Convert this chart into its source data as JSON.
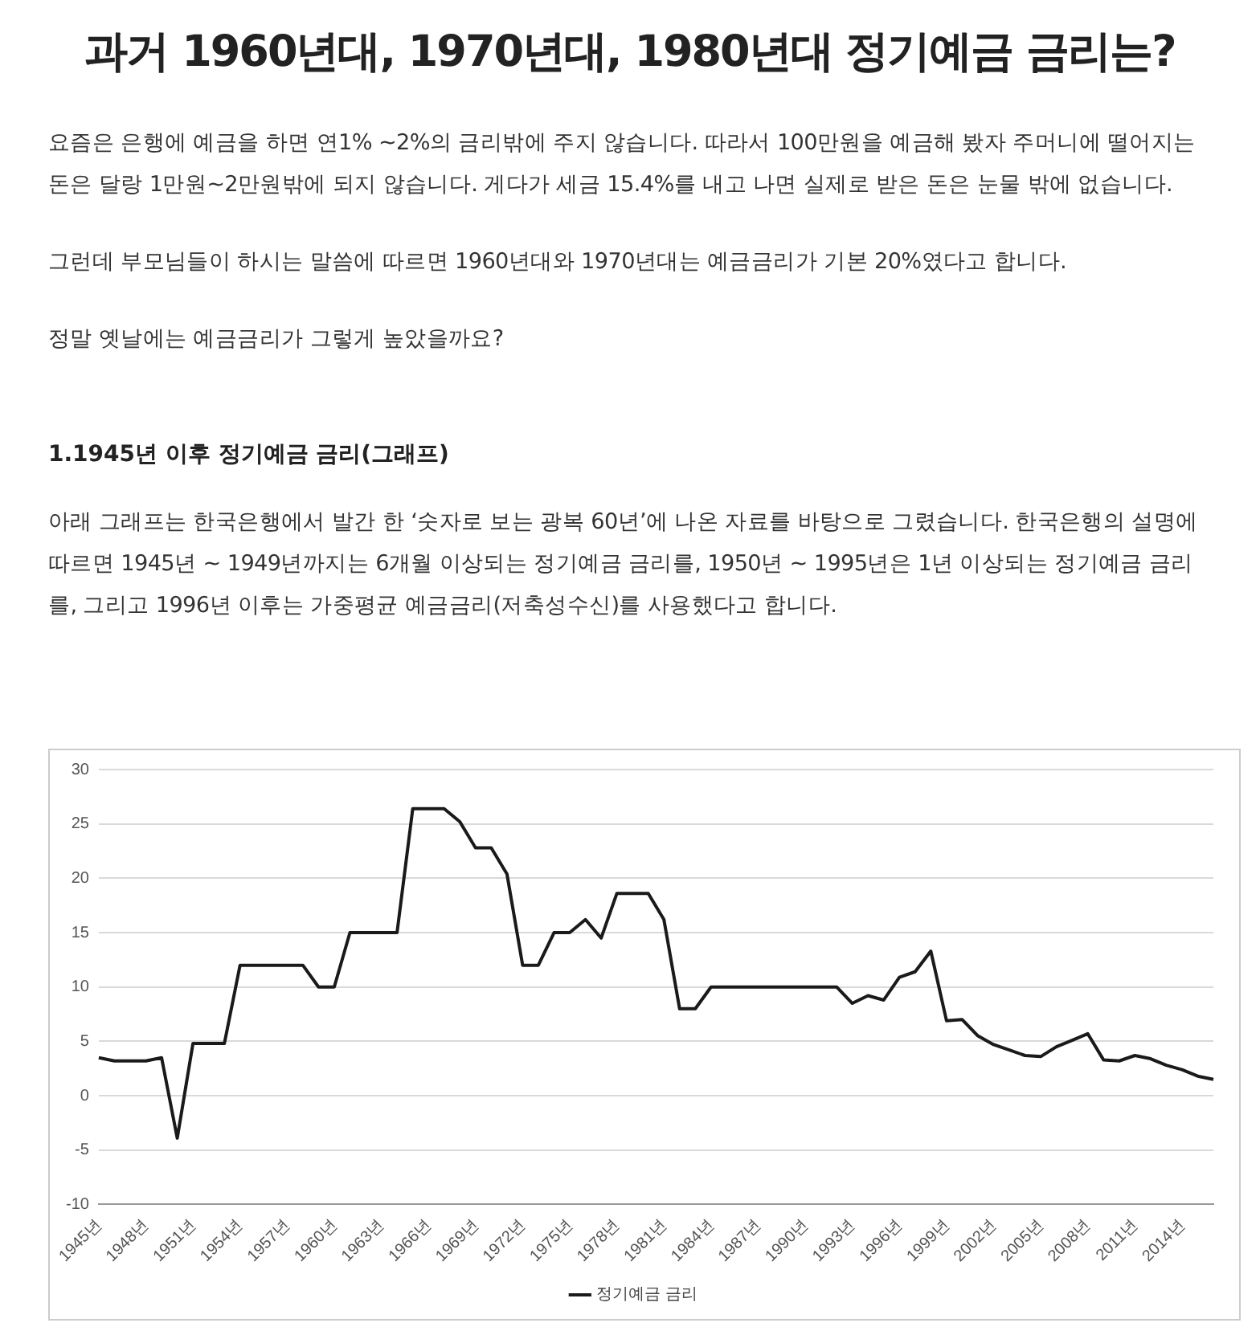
{
  "chart_data": {
    "type": "line",
    "title": "과거 1960년대, 1970년대, 1980년대 정기예금 금리는?",
    "subtitle": "1.1945년 이후 정기예금 금리(그래프)",
    "annotations": [
      "요즘은 은행에 예금을 하면 연1% ~2%의 금리밖에 주지 않습니다. 따라서 100만원을 예금해 봤자 주머니에 떨어지는 돈은 달랑 1만원~2만원밖에 되지 않습니다. 게다가 세금 15.4%를 내고 나면 실제로 받은 돈은 눈물 밖에 없습니다.",
      "그런데 부모님들이 하시는 말씀에 따르면 1960년대와 1970년대는 예금금리가 기본 20%였다고 합니다.",
      "정말 옛날에는 예금금리가 그렇게 높았을까요?",
      "아래 그래프는 한국은행에서 발간 한 ‘숫자로 보는 광복 60년’에 나온 자료를 바탕으로 그렸습니다. 한국은행의 설명에 따르면 1945년 ~ 1949년까지는 6개월 이상되는 정기예금 금리를, 1950년 ~ 1995년은 1년 이상되는 정기예금 금리를, 그리고 1996년 이후는 가중평균 예금금리(저축성수신)를 사용했다고 합니다."
    ],
    "categories": [
      "1945년",
      null,
      null,
      "1948년",
      null,
      null,
      "1951년",
      null,
      null,
      "1954년",
      null,
      null,
      "1957년",
      null,
      null,
      "1960년",
      null,
      null,
      "1963년",
      null,
      null,
      "1966년",
      null,
      null,
      "1969년",
      null,
      null,
      "1972년",
      null,
      null,
      "1975년",
      null,
      null,
      "1978년",
      null,
      null,
      "1981년",
      null,
      null,
      "1984년",
      null,
      null,
      "1987년",
      null,
      null,
      "1990년",
      null,
      null,
      "1993년",
      null,
      null,
      "1996년",
      null,
      null,
      "1999년",
      null,
      null,
      "2002년",
      null,
      null,
      "2005년",
      null,
      null,
      "2008년",
      null,
      null,
      "2011년",
      null,
      null,
      "2014년",
      null,
      null
    ],
    "series": [
      {
        "name": "정기예금 금리",
        "color": "#1a1a1a",
        "values": [
          3.5,
          3.2,
          3.2,
          3.2,
          3.5,
          -3.9,
          4.8,
          4.8,
          4.8,
          12,
          12,
          12,
          12,
          12,
          10,
          10,
          15,
          15,
          15,
          15,
          26.4,
          26.4,
          26.4,
          25.2,
          22.8,
          22.8,
          20.4,
          12,
          12,
          15,
          15,
          16.2,
          14.5,
          18.6,
          18.6,
          18.6,
          16.2,
          8,
          8,
          10,
          10,
          10,
          10,
          10,
          10,
          10,
          10,
          10,
          8.5,
          9.2,
          8.8,
          10.9,
          11.4,
          13.3,
          6.9,
          7,
          5.5,
          4.7,
          4.2,
          3.7,
          3.6,
          4.5,
          5.1,
          5.7,
          3.3,
          3.2,
          3.7,
          3.4,
          2.8,
          2.4,
          1.8,
          1.5
        ]
      }
    ],
    "ylim": [
      -10,
      30
    ],
    "yticks": [
      -10,
      -5,
      0,
      5,
      10,
      15,
      20,
      25,
      30
    ],
    "grid": "y",
    "legend": "bottom",
    "marker": "none",
    "line_style": "solid"
  }
}
